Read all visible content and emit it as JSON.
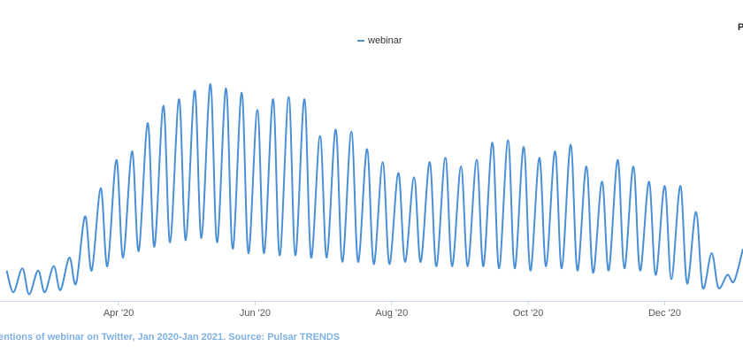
{
  "chart_data": {
    "type": "line",
    "logo": "P",
    "caption": "entions of webinar on Twitter, Jan 2020-Jan 2021. Source: Pulsar TRENDS",
    "x": [
      41,
      44,
      48,
      51,
      55,
      58,
      62,
      65,
      69,
      72,
      76,
      79,
      83,
      86,
      90,
      93,
      97,
      100,
      104,
      107,
      111,
      114,
      118,
      121,
      125,
      128,
      132,
      135,
      139,
      142,
      146,
      149,
      153,
      156,
      160,
      163,
      167,
      170,
      174,
      177,
      181,
      184,
      188,
      191,
      195,
      198,
      202,
      205,
      209,
      212,
      216,
      219,
      223,
      226,
      230,
      233,
      237,
      240,
      244,
      247,
      251,
      254,
      258,
      261,
      265,
      268,
      272,
      275,
      279,
      282,
      286,
      289,
      293,
      296,
      300,
      303,
      307,
      310,
      314,
      317,
      321,
      324,
      328,
      331,
      335,
      338,
      342,
      345,
      349,
      352,
      356,
      359,
      363,
      366,
      370
    ],
    "series": [
      {
        "name": "webinar",
        "color": "#4a8fd4",
        "values": [
          14,
          4,
          15,
          3,
          14,
          4,
          16,
          5,
          20,
          8,
          39,
          14,
          52,
          16,
          65,
          20,
          69,
          23,
          82,
          25,
          90,
          27,
          93,
          28,
          97,
          29,
          100,
          27,
          98,
          24,
          96,
          22,
          88,
          22,
          93,
          21,
          94,
          21,
          93,
          20,
          76,
          20,
          79,
          18,
          78,
          18,
          70,
          17,
          64,
          17,
          59,
          18,
          57,
          18,
          64,
          16,
          66,
          16,
          62,
          16,
          65,
          16,
          73,
          15,
          74,
          15,
          71,
          14,
          66,
          16,
          69,
          15,
          72,
          14,
          62,
          13,
          55,
          14,
          65,
          15,
          62,
          14,
          55,
          12,
          53,
          10,
          53,
          8,
          41,
          6,
          22,
          6,
          12,
          9,
          24
        ]
      }
    ],
    "xlim": [
      38,
      370
    ],
    "xticks": [
      {
        "value": 91,
        "label": "Apr '20"
      },
      {
        "value": 152,
        "label": "Jun '20"
      },
      {
        "value": 213,
        "label": "Aug '20"
      },
      {
        "value": 274,
        "label": "Oct '20"
      },
      {
        "value": 335,
        "label": "Dec '20"
      }
    ],
    "ylim": [
      0,
      100
    ],
    "legend": "top"
  }
}
